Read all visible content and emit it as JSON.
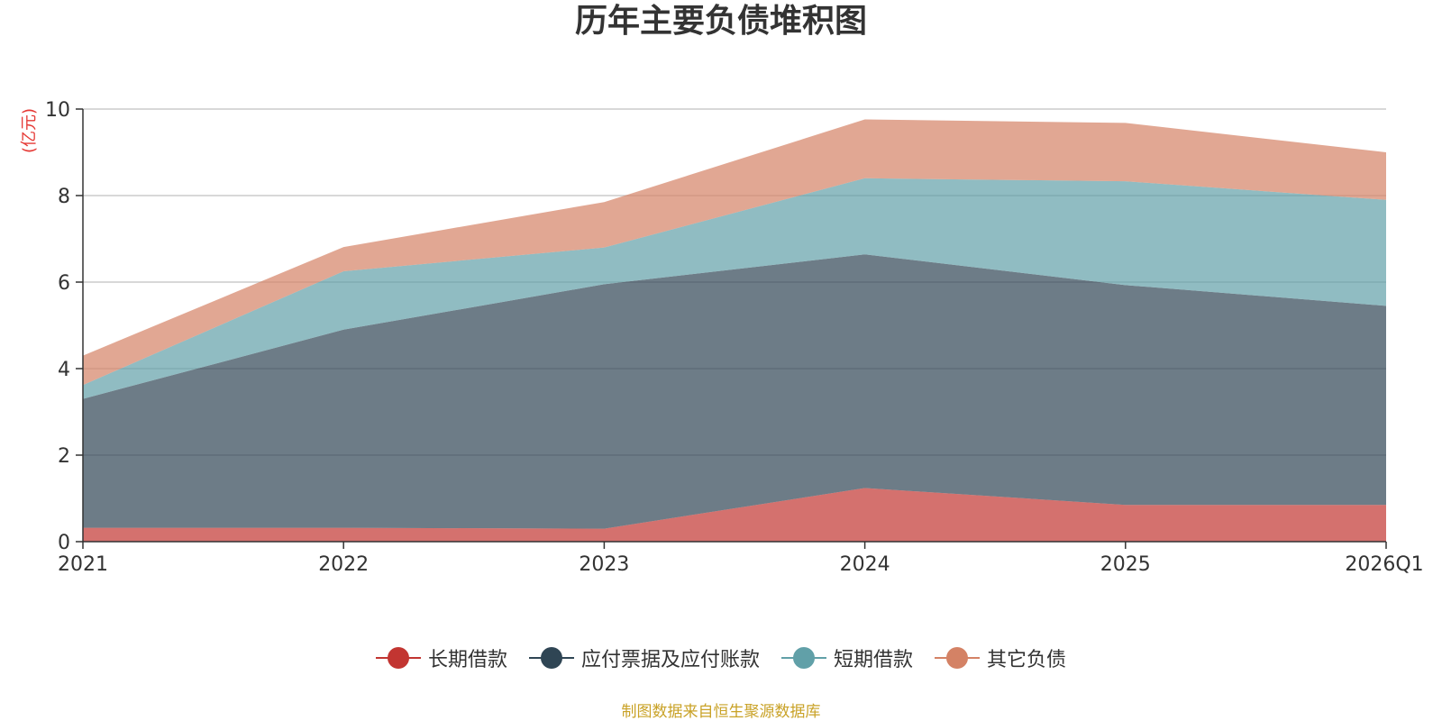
{
  "chart_data": {
    "type": "area",
    "stacked": true,
    "title": "历年主要负债堆积图",
    "unit_label": "(亿元)",
    "categories": [
      "2021",
      "2022",
      "2023",
      "2024",
      "2025",
      "2026Q1"
    ],
    "ylim": [
      0,
      10
    ],
    "yticks": [
      0,
      2,
      4,
      6,
      8,
      10
    ],
    "grid": true,
    "legend_position": "bottom",
    "series": [
      {
        "name": "长期借款",
        "color": "#c23531",
        "values": [
          0.32,
          0.32,
          0.3,
          1.24,
          0.85,
          0.85
        ]
      },
      {
        "name": "应付票据及应付账款",
        "color": "#2f4554",
        "values": [
          2.98,
          4.58,
          5.65,
          5.4,
          5.08,
          4.6
        ]
      },
      {
        "name": "短期借款",
        "color": "#61a0a8",
        "values": [
          0.32,
          1.35,
          0.85,
          1.76,
          2.4,
          2.45
        ]
      },
      {
        "name": "其它负债",
        "color": "#d48265",
        "values": [
          0.68,
          0.56,
          1.05,
          1.36,
          1.35,
          1.1
        ]
      }
    ]
  },
  "footer": {
    "source": "制图数据来自恒生聚源数据库"
  }
}
